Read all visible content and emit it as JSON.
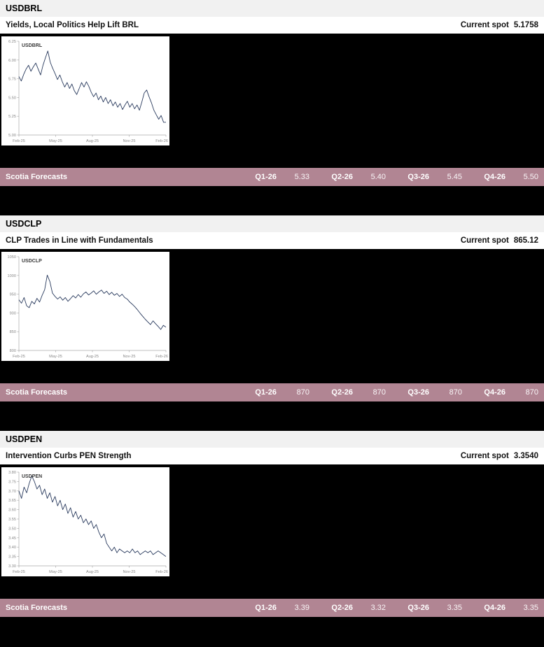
{
  "colors": {
    "forecast_bar_bg": "#b18593",
    "section_header_bg": "#f1f1f1",
    "chart_line": "#2a3b5e",
    "page_bg": "#000000"
  },
  "sections": [
    {
      "pair": "USDBRL",
      "headline": "Yields, Local Politics Help Lift BRL",
      "spot_label": "Current spot",
      "spot_value": "5.1758",
      "forecast_label": "Scotia Forecasts",
      "forecasts": [
        {
          "quarter": "Q1-26",
          "value": "5.33"
        },
        {
          "quarter": "Q2-26",
          "value": "5.40"
        },
        {
          "quarter": "Q3-26",
          "value": "5.45"
        },
        {
          "quarter": "Q4-26",
          "value": "5.50"
        }
      ]
    },
    {
      "pair": "USDCLP",
      "headline": "CLP Trades in Line with Fundamentals",
      "spot_label": "Current spot",
      "spot_value": "865.12",
      "forecast_label": "Scotia Forecasts",
      "forecasts": [
        {
          "quarter": "Q1-26",
          "value": "870"
        },
        {
          "quarter": "Q2-26",
          "value": "870"
        },
        {
          "quarter": "Q3-26",
          "value": "870"
        },
        {
          "quarter": "Q4-26",
          "value": "870"
        }
      ]
    },
    {
      "pair": "USDPEN",
      "headline": "Intervention Curbs PEN Strength",
      "spot_label": "Current spot",
      "spot_value": "3.3540",
      "forecast_label": "Scotia Forecasts",
      "forecasts": [
        {
          "quarter": "Q1-26",
          "value": "3.39"
        },
        {
          "quarter": "Q2-26",
          "value": "3.32"
        },
        {
          "quarter": "Q3-26",
          "value": "3.35"
        },
        {
          "quarter": "Q4-26",
          "value": "3.35"
        }
      ]
    }
  ],
  "chart_data": [
    {
      "type": "line",
      "label": "USDBRL",
      "x_ticks": [
        "Feb-25",
        "May-25",
        "Aug-25",
        "Nov-25",
        "Feb-26"
      ],
      "y_tick_labels": [
        "6.25",
        "6.00",
        "5.75",
        "5.50",
        "5.25",
        "5.00"
      ],
      "ylim": [
        5.0,
        6.25
      ],
      "line_color": "#2a3b5e",
      "values": [
        5.78,
        5.72,
        5.81,
        5.88,
        5.93,
        5.85,
        5.91,
        5.96,
        5.88,
        5.8,
        5.93,
        6.03,
        6.12,
        5.97,
        5.89,
        5.82,
        5.74,
        5.8,
        5.71,
        5.64,
        5.7,
        5.62,
        5.68,
        5.59,
        5.54,
        5.62,
        5.7,
        5.64,
        5.71,
        5.65,
        5.57,
        5.51,
        5.56,
        5.47,
        5.52,
        5.44,
        5.5,
        5.42,
        5.47,
        5.39,
        5.44,
        5.37,
        5.42,
        5.34,
        5.4,
        5.45,
        5.37,
        5.42,
        5.35,
        5.4,
        5.33,
        5.44,
        5.56,
        5.6,
        5.51,
        5.43,
        5.33,
        5.27,
        5.21,
        5.26,
        5.17,
        5.17
      ]
    },
    {
      "type": "line",
      "label": "USDCLP",
      "x_ticks": [
        "Feb-25",
        "May-25",
        "Aug-25",
        "Nov-25",
        "Feb-26"
      ],
      "y_tick_labels": [
        "1050",
        "1000",
        "950",
        "900",
        "850",
        "800"
      ],
      "ylim": [
        800,
        1050
      ],
      "line_color": "#2a3b5e",
      "values": [
        935,
        926,
        941,
        919,
        914,
        931,
        924,
        939,
        929,
        947,
        962,
        1001,
        984,
        953,
        944,
        937,
        943,
        934,
        941,
        931,
        938,
        946,
        940,
        949,
        942,
        951,
        956,
        948,
        953,
        959,
        950,
        956,
        961,
        952,
        958,
        949,
        955,
        947,
        952,
        944,
        950,
        941,
        937,
        929,
        923,
        916,
        908,
        899,
        891,
        883,
        876,
        869,
        879,
        871,
        864,
        856,
        867,
        862
      ]
    },
    {
      "type": "line",
      "label": "USDPEN",
      "x_ticks": [
        "Feb-25",
        "May-25",
        "Aug-25",
        "Nov-25",
        "Feb-26"
      ],
      "y_tick_labels": [
        "3.80",
        "3.75",
        "3.70",
        "3.65",
        "3.60",
        "3.55",
        "3.50",
        "3.45",
        "3.40",
        "3.35",
        "3.30"
      ],
      "ylim": [
        3.3,
        3.8
      ],
      "line_color": "#2a3b5e",
      "values": [
        3.7,
        3.66,
        3.72,
        3.69,
        3.74,
        3.78,
        3.75,
        3.71,
        3.73,
        3.68,
        3.71,
        3.66,
        3.69,
        3.64,
        3.67,
        3.62,
        3.65,
        3.6,
        3.63,
        3.58,
        3.61,
        3.56,
        3.59,
        3.55,
        3.57,
        3.53,
        3.55,
        3.52,
        3.54,
        3.5,
        3.52,
        3.48,
        3.45,
        3.47,
        3.42,
        3.4,
        3.38,
        3.4,
        3.37,
        3.39,
        3.38,
        3.37,
        3.38,
        3.37,
        3.39,
        3.37,
        3.38,
        3.36,
        3.37,
        3.38,
        3.37,
        3.38,
        3.36,
        3.37,
        3.38,
        3.37,
        3.36,
        3.35
      ]
    }
  ]
}
